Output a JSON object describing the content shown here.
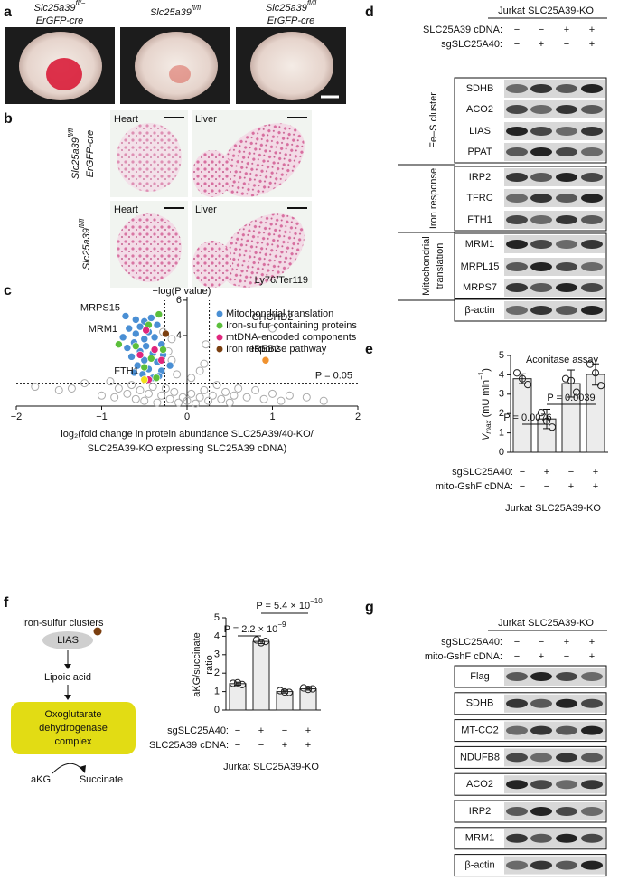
{
  "panels": {
    "a": {
      "label": "a",
      "images": [
        {
          "gene": "Slc25a39",
          "sup": "fl/−",
          "line2": "ErGFP-cre"
        },
        {
          "gene": "Slc25a39",
          "sup": "fl/fl"
        },
        {
          "gene": "Slc25a39",
          "sup": "fl/fl",
          "line2": "ErGFP-cre"
        }
      ]
    },
    "b": {
      "label": "b",
      "rows": [
        {
          "gene": "Slc25a39",
          "sup": "fl/fl",
          "line2": "ErGFP-cre"
        },
        {
          "gene": "Slc25a39",
          "sup": "fl/fl"
        }
      ],
      "columns": [
        "Heart",
        "Liver"
      ],
      "stain": "Ly76/Ter119"
    },
    "d": {
      "label": "d",
      "header": "Jurkat SLC25A39-KO",
      "conditions": [
        {
          "name": "SLC25A39 cDNA:",
          "signs": [
            "−",
            "−",
            "+",
            "+"
          ]
        },
        {
          "name": "sgSLC25A40:",
          "signs": [
            "−",
            "+",
            "−",
            "+"
          ]
        }
      ],
      "groups": [
        {
          "lines": [
            "Fe–S cluster"
          ],
          "proteins": [
            "SDHB",
            "ACO2",
            "LIAS",
            "PPAT"
          ]
        },
        {
          "lines": [
            "Iron response"
          ],
          "proteins": [
            "IRP2",
            "TFRC",
            "FTH1"
          ]
        },
        {
          "lines": [
            "Mitochondrial",
            "translation"
          ],
          "proteins": [
            "MRM1",
            "MRPL15",
            "MRPS7"
          ]
        }
      ],
      "loading": "β-actin"
    },
    "f_diagram": {
      "label": "f",
      "cofactor": "Iron-sulfur clusters",
      "enzyme": "LIAS",
      "product": "Lipoic acid",
      "complex": [
        "Oxoglutarate",
        "dehydrogenase",
        "complex"
      ],
      "substrate": "aKG",
      "reaction_product": "Succinate"
    },
    "g": {
      "label": "g",
      "header": "Jurkat SLC25A39-KO",
      "conditions": [
        {
          "name": "sgSLC25A40:",
          "signs": [
            "−",
            "−",
            "+",
            "+"
          ]
        },
        {
          "name": "mito-GshF cDNA:",
          "signs": [
            "−",
            "+",
            "−",
            "+"
          ]
        }
      ],
      "proteins": [
        "Flag",
        "SDHB",
        "MT-CO2",
        "NDUFB8",
        "ACO2",
        "IRP2",
        "MRM1",
        "β-actin"
      ]
    }
  },
  "chart_data": [
    {
      "label": "c",
      "type": "scatter",
      "ylabel": "−log(P value)",
      "xlabel": [
        "log₂(fold change in protein abundance SLC25A39/40-KO/",
        "SLC25A39-KO expressing SLC25A39 cDNA)"
      ],
      "xlim": [
        -2,
        2
      ],
      "xticks": [
        {
          "value": -2,
          "label": "−2"
        },
        {
          "value": -1,
          "label": "−1"
        },
        0,
        1,
        2
      ],
      "ylim": [
        0,
        6.2
      ],
      "yticks": [
        4,
        6
      ],
      "x_thresholds": [
        -0.26,
        0.26
      ],
      "p_line": 1.3,
      "p_label": "P = 0.05",
      "series": [
        {
          "color": "#aaaaaa",
          "x": [
            -1.78,
            -1.5,
            -1.35,
            -1.2,
            -1.0,
            -0.9,
            -0.85,
            -0.8,
            -0.7,
            -0.65,
            -0.6,
            -0.55,
            -0.5,
            -0.45,
            -0.4,
            -0.35,
            -0.3,
            -0.25,
            -0.2,
            -0.15,
            -0.1,
            -0.05,
            0,
            0.05,
            0.1,
            0.15,
            0.2,
            0.25,
            0.3,
            0.35,
            0.4,
            0.45,
            0.5,
            0.55,
            0.6,
            0.7,
            0.8,
            0.9,
            1.0,
            1.1,
            1.2,
            1.4,
            1.6,
            -0.18,
            -0.22,
            -0.12,
            0.15,
            0.22,
            0.2,
            0.05,
            -0.28,
            -0.18,
            1.0
          ],
          "y": [
            1.1,
            0.9,
            1.0,
            1.3,
            0.6,
            1.4,
            0.5,
            1.0,
            0.7,
            1.2,
            0.4,
            0.9,
            0.3,
            0.7,
            1.1,
            0.2,
            0.6,
            1.0,
            0.4,
            0.8,
            0.2,
            0.5,
            0.3,
            0.7,
            0.15,
            0.5,
            0.9,
            0.3,
            0.6,
            1.2,
            0.4,
            0.8,
            0.2,
            0.6,
            1.0,
            0.5,
            0.9,
            0.4,
            0.7,
            0.3,
            0.6,
            0.5,
            0.3,
            2.6,
            3.1,
            1.8,
            2.0,
            3.5,
            2.4,
            1.6,
            4.2,
            3.8,
            4.4
          ]
        },
        {
          "name": "Mitochondrial translation",
          "color": "#4a8fd4",
          "x": [
            -0.72,
            -0.6,
            -0.5,
            -0.42,
            -0.55,
            -0.68,
            -0.35,
            -0.45,
            -0.6,
            -0.75,
            -0.5,
            -0.38,
            -0.62,
            -0.3,
            -0.48,
            -0.7,
            -0.55,
            -0.4,
            -0.28,
            -0.65,
            -0.5,
            -0.35,
            -0.58,
            -0.45,
            -0.3,
            -0.52,
            -0.4,
            -0.62,
            -0.33,
            -0.2
          ],
          "y": [
            5.1,
            4.9,
            4.8,
            5.0,
            4.5,
            4.4,
            4.6,
            4.2,
            4.1,
            3.9,
            3.8,
            3.9,
            3.6,
            3.5,
            3.4,
            3.3,
            3.1,
            3.0,
            2.9,
            2.8,
            2.6,
            2.5,
            2.3,
            2.1,
            2.0,
            1.8,
            1.6,
            1.9,
            1.7,
            2.3
          ]
        },
        {
          "name": "Iron-sulfur containing proteins",
          "color": "#5cbf3c",
          "x": [
            -0.33,
            -0.45,
            -0.8,
            -0.6,
            -0.42,
            -0.28,
            -0.5,
            -0.36
          ],
          "y": [
            5.2,
            4.6,
            3.5,
            3.4,
            2.7,
            3.2,
            2.2,
            1.6
          ]
        },
        {
          "name": "mtDNA-encoded components",
          "color": "#e0267d",
          "x": [
            -0.48,
            -0.38,
            -0.55,
            -0.3,
            -0.45
          ],
          "y": [
            4.3,
            3.2,
            2.9,
            2.6,
            1.5
          ]
        },
        {
          "name": "Iron response pathway",
          "color": "#7b3f10",
          "x": [
            -0.25
          ],
          "y": [
            4.1
          ]
        },
        {
          "color": "#f2e01c",
          "x": [
            -0.5
          ],
          "y": [
            1.5
          ]
        },
        {
          "color": "#f0922f",
          "x": [
            0.92
          ],
          "y": [
            2.6
          ]
        }
      ],
      "annotations": [
        {
          "text": "MRPS15",
          "x": -0.72,
          "y": 5.1
        },
        {
          "text": "MRM1",
          "x": -0.75,
          "y": 3.9
        },
        {
          "text": "FTH1",
          "x": -0.5,
          "y": 1.5
        },
        {
          "text": "CHCHD2",
          "x": 1.0,
          "y": 4.4
        },
        {
          "text": "IREB2",
          "x": 0.92,
          "y": 2.6
        }
      ]
    },
    {
      "label": "e",
      "type": "bar",
      "title": "Aconitase assay",
      "ylabel": {
        "v": "V",
        "sub": "max",
        "unit": " (mU min",
        "sup": "−1",
        "close": ")"
      },
      "ylim": [
        0,
        5
      ],
      "yticks": [
        0,
        1,
        2,
        3,
        4,
        5
      ],
      "color": "#ececec",
      "values": [
        3.8,
        1.72,
        3.55,
        4.02
      ],
      "errors": [
        0.25,
        0.5,
        0.7,
        0.55
      ],
      "points": [
        [
          4.1,
          3.8,
          3.5
        ],
        [
          2.05,
          1.6,
          1.3
        ],
        [
          3.8,
          3.7,
          3.1
        ],
        [
          4.55,
          4.1,
          3.45
        ]
      ],
      "comparisons": [
        {
          "text": "P = 0.0076"
        },
        {
          "text": "P = 0.0039"
        }
      ],
      "conditions": [
        {
          "name": "sgSLC25A40:",
          "signs": [
            "−",
            "+",
            "−",
            "+"
          ]
        },
        {
          "name": "mito-GshF cDNA:",
          "signs": [
            "−",
            "−",
            "+",
            "+"
          ]
        }
      ],
      "footer": "Jurkat SLC25A39-KO"
    },
    {
      "label": "f",
      "type": "bar",
      "ylabel": [
        "aKG/succinate",
        "ratio"
      ],
      "ylim": [
        0,
        5
      ],
      "yticks": [
        0,
        1,
        2,
        3,
        4,
        5
      ],
      "color": "#ececec",
      "values": [
        1.43,
        3.72,
        1.0,
        1.15
      ],
      "errors": [
        0.08,
        0.12,
        0.08,
        0.07
      ],
      "points": [
        [
          1.45,
          1.48,
          1.38
        ],
        [
          3.8,
          3.65,
          3.72
        ],
        [
          1.05,
          0.98,
          0.96
        ],
        [
          1.2,
          1.12,
          1.15
        ]
      ],
      "comparisons": [
        {
          "text": "P = 2.2 × 10",
          "exp": "−9"
        },
        {
          "text": "P = 5.4 × 10",
          "exp": "−10"
        }
      ],
      "conditions": [
        {
          "name": "sgSLC25A40:",
          "signs": [
            "−",
            "+",
            "−",
            "+"
          ]
        },
        {
          "name": "SLC25A39 cDNA:",
          "signs": [
            "−",
            "−",
            "+",
            "+"
          ]
        }
      ],
      "footer": "Jurkat SLC25A39-KO"
    }
  ]
}
